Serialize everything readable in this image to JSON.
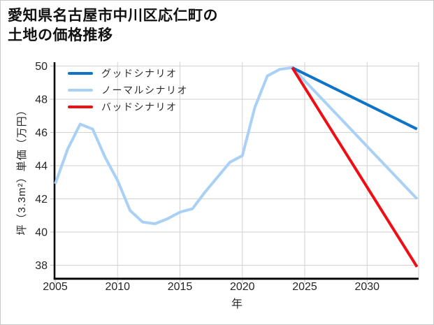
{
  "title": {
    "line1": "愛知県名古屋市中川区応仁町の",
    "line2": "土地の価格推移"
  },
  "colors": {
    "good": "#0d74c8",
    "normal": "#a9d1f5",
    "bad": "#f00d14",
    "grid": "#d2d2d2",
    "axis": "#000000",
    "tick": "#c0c0c0",
    "text": "#262626"
  },
  "chart_data": {
    "type": "line",
    "title": "愛知県名古屋市中川区応仁町の土地の価格推移",
    "xlabel": "年",
    "ylabel": "坪（3.3m²）単価（万円）",
    "x_ticks": [
      2005,
      2010,
      2015,
      2020,
      2025,
      2030
    ],
    "y_ticks": [
      38,
      40,
      42,
      44,
      46,
      48,
      50
    ],
    "xlim": [
      2005,
      2034.13
    ],
    "ylim": [
      37.24,
      50.23
    ],
    "grid": true,
    "legend_position": "upper-left",
    "series": [
      {
        "name": "グッドシナリオ",
        "color_key": "good",
        "x": [
          2024,
          2034
        ],
        "y": [
          49.9,
          46.2
        ]
      },
      {
        "name": "ノーマルシナリオ",
        "color_key": "normal",
        "x": [
          2005,
          2006,
          2007,
          2008,
          2009,
          2010,
          2011,
          2012,
          2013,
          2014,
          2015,
          2016,
          2017,
          2018,
          2019,
          2020,
          2021,
          2022,
          2023,
          2024,
          2034
        ],
        "y": [
          42.9,
          45.0,
          46.5,
          46.2,
          44.5,
          43.1,
          41.3,
          40.6,
          40.5,
          40.8,
          41.2,
          41.4,
          42.4,
          43.3,
          44.2,
          44.6,
          47.5,
          49.4,
          49.8,
          49.9,
          42.0
        ]
      },
      {
        "name": "バッドシナリオ",
        "color_key": "bad",
        "x": [
          2024,
          2034
        ],
        "y": [
          49.9,
          37.9
        ]
      }
    ]
  }
}
